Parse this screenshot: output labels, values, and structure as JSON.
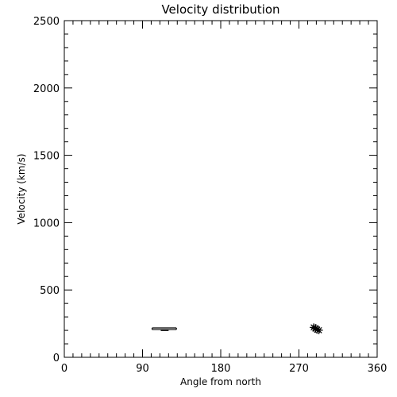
{
  "colors": {
    "background": "#ffffff",
    "ink": "#000000"
  },
  "chart_data": {
    "type": "scatter",
    "title": "Velocity distribution",
    "xlabel": "Angle from north",
    "ylabel": "Velocity (km/s)",
    "xlim": [
      0,
      360
    ],
    "ylim": [
      0,
      2500
    ],
    "x_major_ticks": [
      0,
      90,
      180,
      270,
      360
    ],
    "y_major_ticks": [
      0,
      500,
      1000,
      1500,
      2000,
      2500
    ],
    "x_minor_step": 10,
    "y_minor_step": 100,
    "grid": false,
    "series": [
      {
        "marker": "horizontal-bar",
        "points": [
          {
            "x1": 101,
            "x2": 129,
            "y": 206
          },
          {
            "x1": 101,
            "x2": 129,
            "y": 218
          },
          {
            "x1": 111,
            "x2": 120,
            "y": 199
          }
        ]
      },
      {
        "marker": "asterisk",
        "points": [
          {
            "x": 287,
            "y": 222
          },
          {
            "x": 289,
            "y": 213
          },
          {
            "x": 291,
            "y": 205
          },
          {
            "x": 293,
            "y": 201
          },
          {
            "x": 289,
            "y": 217
          }
        ]
      }
    ]
  }
}
